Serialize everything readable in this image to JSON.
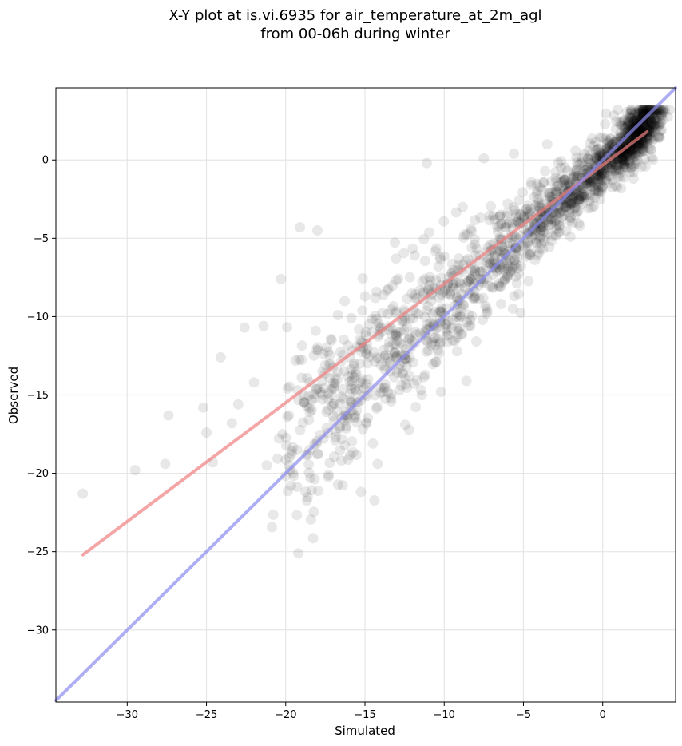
{
  "chart_data": {
    "type": "scatter",
    "title": [
      "X-Y plot at is.vi.6935 for air_temperature_at_2m_agl",
      "from 00-06h during winter"
    ],
    "xlabel": "Simulated",
    "ylabel": "Observed",
    "xlim": [
      -34.5,
      4.6
    ],
    "ylim": [
      -34.6,
      4.6
    ],
    "xticks": [
      -30,
      -25,
      -20,
      -15,
      -10,
      -5,
      0
    ],
    "yticks": [
      0,
      -5,
      -10,
      -15,
      -20,
      -25,
      -30
    ],
    "xtick_labels": [
      "−30",
      "−25",
      "−20",
      "−15",
      "−10",
      "−5",
      "0"
    ],
    "ytick_labels": [
      "0",
      "−5",
      "−10",
      "−15",
      "−20",
      "−25",
      "−30"
    ],
    "grid": true,
    "point_color": "#000000",
    "point_alpha": 0.09,
    "outlier_points": [
      {
        "x": -32.8,
        "y": -21.3
      },
      {
        "x": -29.5,
        "y": -19.8
      },
      {
        "x": -27.6,
        "y": -19.4
      },
      {
        "x": -27.4,
        "y": -16.3
      },
      {
        "x": -24.6,
        "y": -19.3
      },
      {
        "x": -21.2,
        "y": -19.5
      },
      {
        "x": -20.2,
        "y": -17.5
      },
      {
        "x": -14.5,
        "y": -18.1
      },
      {
        "x": -14.2,
        "y": -19.4
      },
      {
        "x": -11.1,
        "y": -0.2
      },
      {
        "x": -20.3,
        "y": -7.6
      },
      {
        "x": -19.1,
        "y": -4.3
      },
      {
        "x": -18.0,
        "y": -4.5
      },
      {
        "x": -25.0,
        "y": -17.4
      },
      {
        "x": -23.4,
        "y": -16.8
      },
      {
        "x": -22.6,
        "y": -10.7
      },
      {
        "x": -21.4,
        "y": -10.6
      },
      {
        "x": -24.1,
        "y": -12.6
      },
      {
        "x": -25.2,
        "y": -15.8
      },
      {
        "x": -23.0,
        "y": -15.6
      },
      {
        "x": -22.0,
        "y": -14.2
      },
      {
        "x": -8.6,
        "y": -14.1
      },
      {
        "x": -10.2,
        "y": -14.8
      },
      {
        "x": -5.6,
        "y": 0.4
      },
      {
        "x": -7.5,
        "y": 0.1
      },
      {
        "x": -3.5,
        "y": 1.0
      }
    ],
    "cloud": {
      "x_range": [
        -20,
        2.8
      ],
      "center_slope": 0.95,
      "center_intercept": -0.4,
      "point_count": 1800
    },
    "series": [
      {
        "name": "",
        "kind": "regression",
        "color": "#f08080",
        "x": [
          -32.8,
          2.8
        ],
        "y": [
          -25.2,
          1.8
        ]
      },
      {
        "name": "",
        "kind": "1:1",
        "color": "#8c8cf0",
        "x": [
          -34.5,
          4.6
        ],
        "y": [
          -34.5,
          4.6
        ]
      }
    ]
  }
}
